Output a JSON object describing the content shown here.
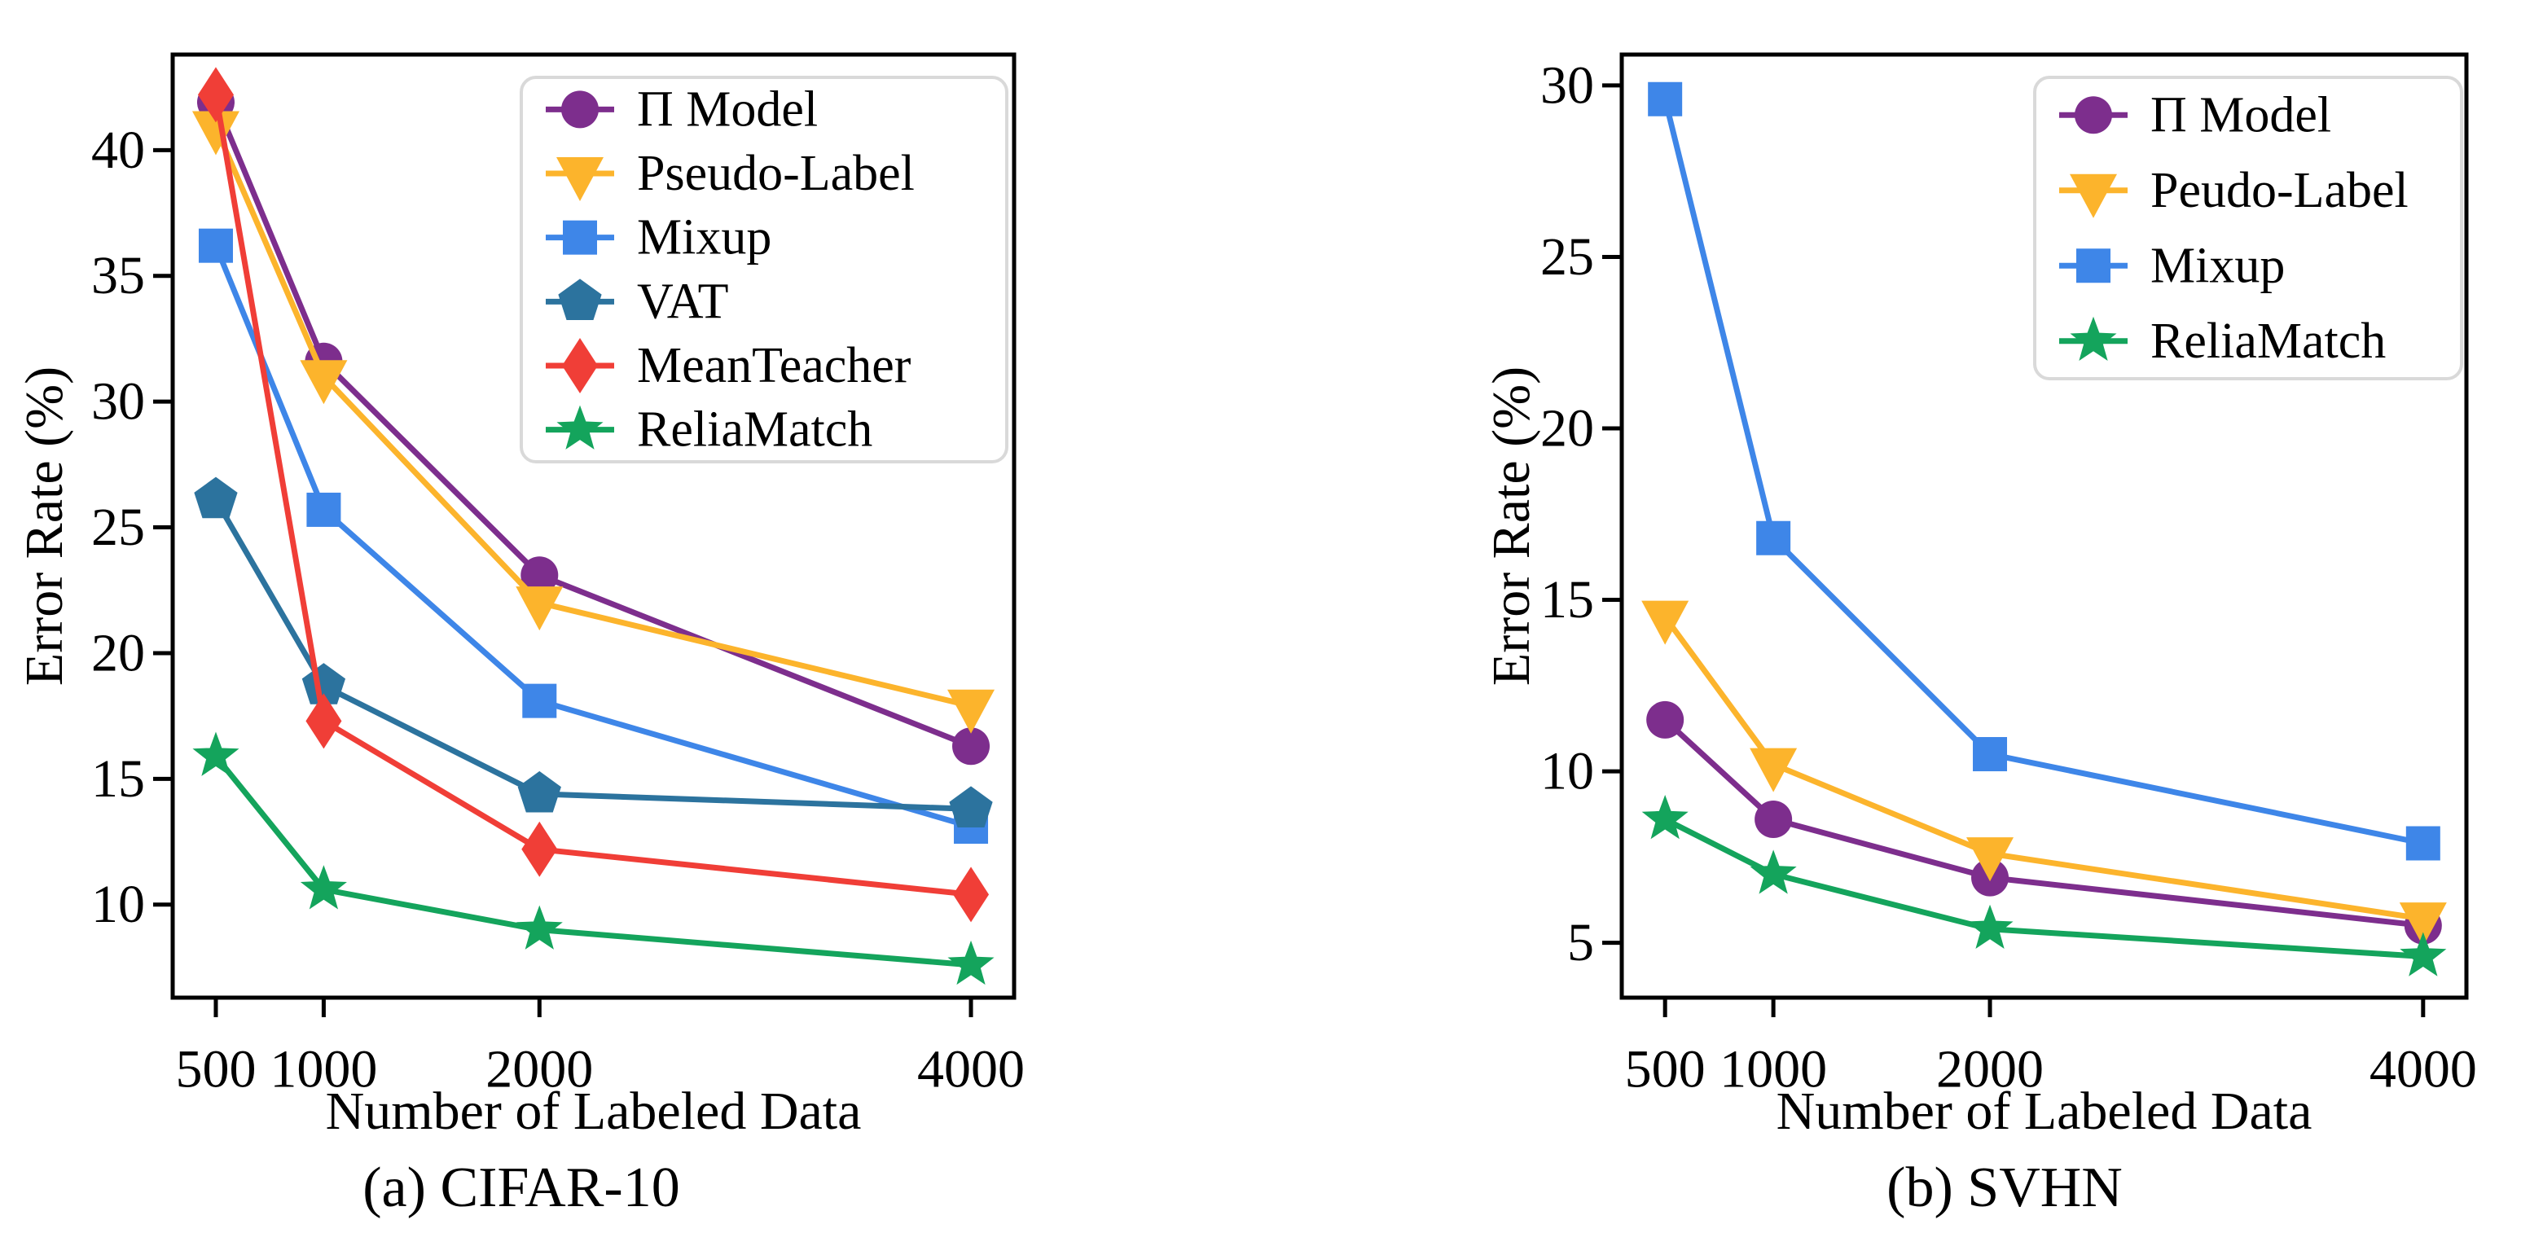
{
  "figure": {
    "background": "#ffffff",
    "frame_color": "#000000",
    "legend_border_color": "#d9d9d9"
  },
  "chart_data": [
    {
      "type": "line",
      "id": "cifar10",
      "caption": "(a) CIFAR-10",
      "xlabel": "Number of Labeled Data",
      "ylabel": "Error Rate (%)",
      "x": [
        500,
        1000,
        2000,
        4000
      ],
      "x_ticks": [
        500,
        1000,
        2000,
        4000
      ],
      "y_ticks": [
        10,
        15,
        20,
        25,
        30,
        35,
        40
      ],
      "xlim": [
        300,
        4200
      ],
      "ylim": [
        6.3,
        43.8
      ],
      "grid": false,
      "legend_position": "upper right",
      "series": [
        {
          "name": "Π Model",
          "color": "#7D2E8D",
          "marker": "circle",
          "values": [
            41.9,
            31.6,
            23.1,
            16.3
          ]
        },
        {
          "name": "Pseudo-Label",
          "color": "#FCB42C",
          "marker": "triangle-down",
          "values": [
            40.9,
            31.0,
            22.0,
            17.9
          ]
        },
        {
          "name": "Mixup",
          "color": "#3E86E8",
          "marker": "square",
          "values": [
            36.2,
            25.7,
            18.1,
            13.1
          ]
        },
        {
          "name": "VAT",
          "color": "#2C739E",
          "marker": "pentagon",
          "values": [
            26.1,
            18.7,
            14.4,
            13.8
          ]
        },
        {
          "name": "MeanTeacher",
          "color": "#F03E37",
          "marker": "diamond",
          "values": [
            42.2,
            17.3,
            12.2,
            10.4
          ]
        },
        {
          "name": "ReliaMatch",
          "color": "#14A45C",
          "marker": "star",
          "values": [
            15.9,
            10.6,
            9.0,
            7.6
          ]
        }
      ]
    },
    {
      "type": "line",
      "id": "svhn",
      "caption": "(b) SVHN",
      "xlabel": "Number of Labeled Data",
      "ylabel": "Error Rate (%)",
      "x": [
        500,
        1000,
        2000,
        4000
      ],
      "x_ticks": [
        500,
        1000,
        2000,
        4000
      ],
      "y_ticks": [
        5,
        10,
        15,
        20,
        25,
        30
      ],
      "xlim": [
        300,
        4200
      ],
      "ylim": [
        3.4,
        30.9
      ],
      "grid": false,
      "legend_position": "upper right",
      "series": [
        {
          "name": "Π Model",
          "color": "#7D2E8D",
          "marker": "circle",
          "values": [
            11.5,
            8.6,
            6.9,
            5.5
          ]
        },
        {
          "name": "Peudo-Label",
          "color": "#FCB42C",
          "marker": "triangle-down",
          "values": [
            14.5,
            10.2,
            7.6,
            5.7
          ]
        },
        {
          "name": "Mixup",
          "color": "#3E86E8",
          "marker": "square",
          "values": [
            29.6,
            16.8,
            10.5,
            7.9
          ]
        },
        {
          "name": "ReliaMatch",
          "color": "#14A45C",
          "marker": "star",
          "values": [
            8.6,
            7.0,
            5.4,
            4.6
          ]
        }
      ]
    }
  ]
}
